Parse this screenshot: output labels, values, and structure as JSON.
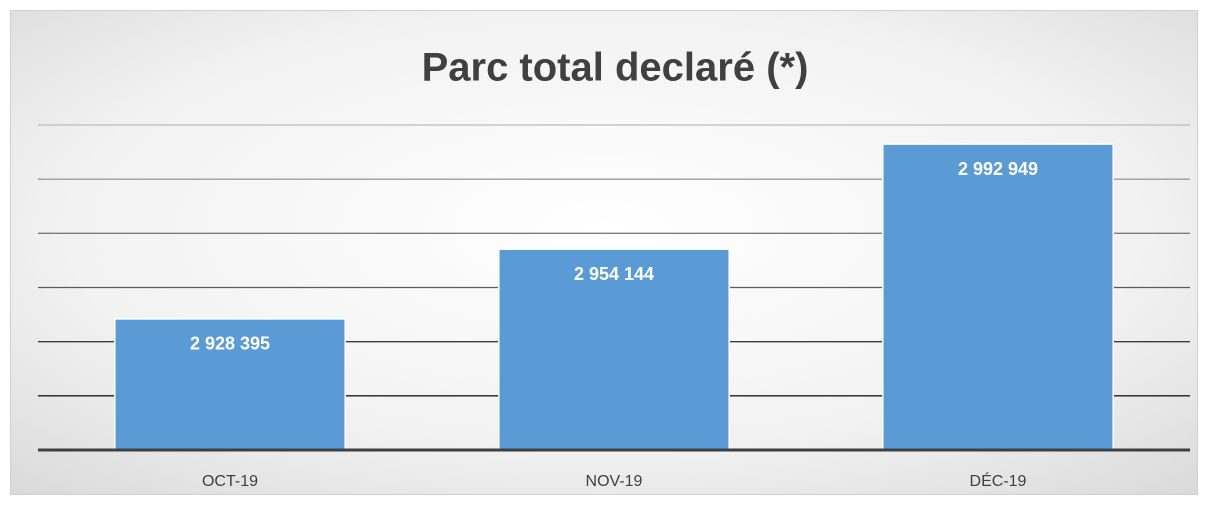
{
  "chart_data": {
    "type": "bar",
    "title": "Parc total declaré (*)",
    "categories": [
      "OCT-19",
      "NOV-19",
      "DÉC-19"
    ],
    "values": [
      2928395,
      2954144,
      2992949
    ],
    "value_labels": [
      "2 928 395",
      "2 954 144",
      "2 992 949"
    ],
    "color": "#5b9bd5",
    "ylim": [
      2880000,
      3000000
    ],
    "yticks": [
      2880000,
      2900000,
      2920000,
      2940000,
      2960000,
      2980000,
      3000000
    ],
    "grid": true
  }
}
